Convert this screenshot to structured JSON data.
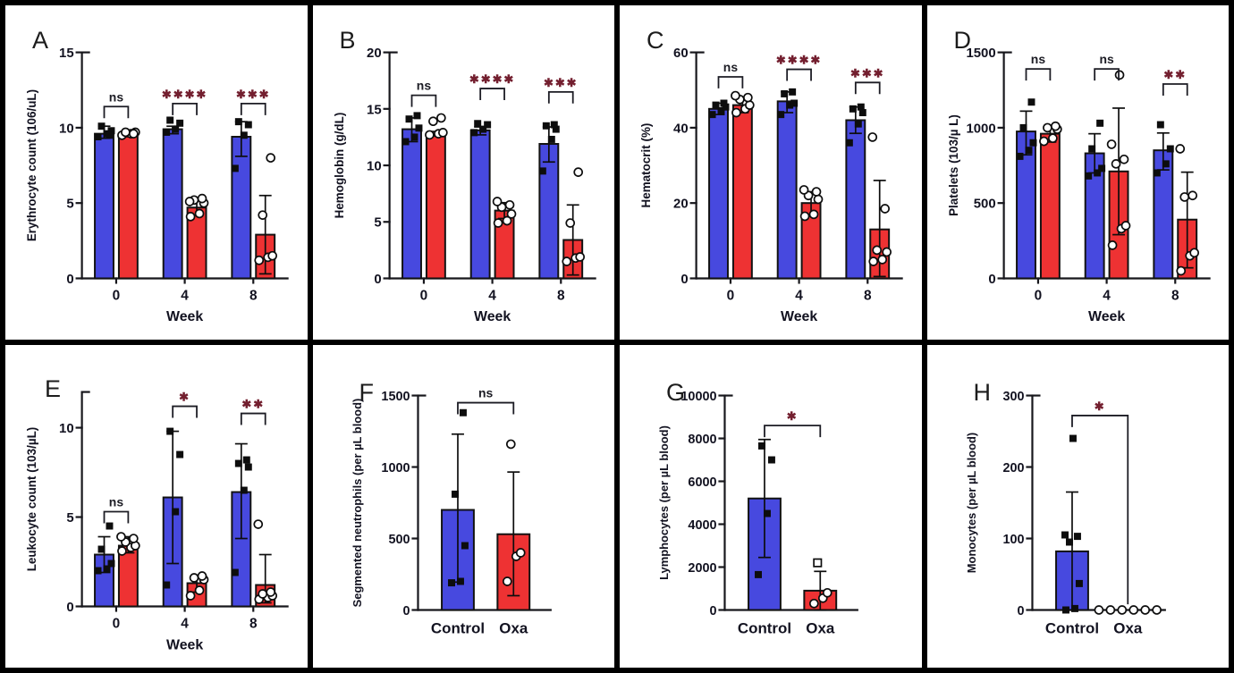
{
  "groups": [
    {
      "name": "Control",
      "color": "#4749df",
      "marker": "square-filled"
    },
    {
      "name": "Oxa",
      "color": "#ee3233",
      "marker": "circle-open"
    }
  ],
  "colors": {
    "axis": "#17171c",
    "tick_label": "#121220",
    "bar_outline": "#121212",
    "point": "#0d0d0d",
    "sig_star": "#731f2f",
    "sig_ns": "#1c1c24"
  },
  "chart_data": [
    {
      "id": "A",
      "type": "bar",
      "layout": "grouped",
      "title": "",
      "xlabel": "Week",
      "ylabel": "Erythrocyte count (106/uL)",
      "ylim": [
        0,
        15
      ],
      "yticks": [
        0,
        5,
        10,
        15
      ],
      "categories": [
        "0",
        "4",
        "8"
      ],
      "series": [
        {
          "name": "Control",
          "group": 0,
          "values": [
            9.6,
            9.9,
            9.4
          ],
          "err_lo": [
            9.3,
            9.6,
            8.1
          ],
          "err_hi": [
            10.1,
            10.1,
            10.4
          ],
          "points": [
            [
              9.4,
              9.6,
              9.8,
              10.1,
              9.5
            ],
            [
              9.7,
              9.9,
              10.3,
              10.5
            ],
            [
              7.3,
              9.5,
              10.2,
              10.4
            ]
          ]
        },
        {
          "name": "Oxa",
          "group": 1,
          "values": [
            9.6,
            4.7,
            2.9
          ],
          "err_lo": [
            9.4,
            4.2,
            0.3
          ],
          "err_hi": [
            9.8,
            5.2,
            5.5
          ],
          "points": [
            [
              9.5,
              9.6,
              9.7,
              9.7,
              9.6
            ],
            [
              4.1,
              4.3,
              5.0,
              5.2,
              5.3,
              5.1
            ],
            [
              1.2,
              1.4,
              1.5,
              4.2,
              8.0
            ]
          ]
        }
      ],
      "significance": [
        {
          "category": 0,
          "label": "ns",
          "y": 11.4
        },
        {
          "category": 1,
          "label": "****",
          "y": 11.6
        },
        {
          "category": 2,
          "label": "***",
          "y": 11.6
        }
      ]
    },
    {
      "id": "B",
      "type": "bar",
      "layout": "grouped",
      "title": "",
      "xlabel": "Week",
      "ylabel": "Hemoglobin (g/dL)",
      "ylim": [
        0,
        20
      ],
      "yticks": [
        0,
        5,
        10,
        15,
        20
      ],
      "categories": [
        "0",
        "4",
        "8"
      ],
      "series": [
        {
          "name": "Control",
          "group": 0,
          "values": [
            13.2,
            13.1,
            11.9
          ],
          "err_lo": [
            12.1,
            12.7,
            10.3
          ],
          "err_hi": [
            14.2,
            13.4,
            13.4
          ],
          "points": [
            [
              12.1,
              12.5,
              13.3,
              14.1,
              14.4
            ],
            [
              12.9,
              13.2,
              13.6,
              13.7
            ],
            [
              9.5,
              12.3,
              13.2,
              13.5,
              13.6
            ]
          ]
        },
        {
          "name": "Oxa",
          "group": 1,
          "values": [
            12.8,
            6.0,
            3.4
          ],
          "err_lo": [
            12.6,
            5.3,
            0.3
          ],
          "err_hi": [
            13.0,
            6.7,
            6.5
          ],
          "points": [
            [
              12.7,
              12.8,
              12.9,
              13.9,
              14.2
            ],
            [
              4.9,
              5.1,
              5.7,
              6.3,
              6.5,
              6.8
            ],
            [
              1.5,
              1.8,
              1.9,
              4.9,
              9.4
            ]
          ]
        }
      ],
      "significance": [
        {
          "category": 0,
          "label": "ns",
          "y": 16.2
        },
        {
          "category": 1,
          "label": "****",
          "y": 16.8
        },
        {
          "category": 2,
          "label": "***",
          "y": 16.5
        }
      ]
    },
    {
      "id": "C",
      "type": "bar",
      "layout": "grouped",
      "title": "",
      "xlabel": "Week",
      "ylabel": "Hematocrit (%)",
      "ylim": [
        0,
        60
      ],
      "yticks": [
        0,
        20,
        40,
        60
      ],
      "categories": [
        "0",
        "4",
        "8"
      ],
      "series": [
        {
          "name": "Control",
          "group": 0,
          "values": [
            45,
            47,
            42
          ],
          "err_lo": [
            43.5,
            44,
            38.5
          ],
          "err_hi": [
            46.5,
            49.5,
            45.5
          ],
          "points": [
            [
              43.5,
              44.5,
              45.5,
              46,
              46.5
            ],
            [
              43.5,
              46,
              46.5,
              49,
              49.5
            ],
            [
              36,
              41,
              44,
              45,
              45.5
            ]
          ]
        },
        {
          "name": "Oxa",
          "group": 1,
          "values": [
            46,
            20,
            13
          ],
          "err_lo": [
            44,
            16.5,
            0.5
          ],
          "err_hi": [
            48,
            23,
            26
          ],
          "points": [
            [
              44,
              45,
              46,
              47.5,
              48,
              48.5
            ],
            [
              16.5,
              17,
              21,
              22,
              23,
              23.5
            ],
            [
              4.5,
              5,
              7,
              7.5,
              18.5,
              37.5
            ]
          ]
        }
      ],
      "significance": [
        {
          "category": 0,
          "label": "ns",
          "y": 53.5
        },
        {
          "category": 1,
          "label": "****",
          "y": 55.5
        },
        {
          "category": 2,
          "label": "***",
          "y": 52
        }
      ]
    },
    {
      "id": "D",
      "type": "bar",
      "layout": "grouped",
      "title": "",
      "xlabel": "Week",
      "ylabel": "Platelets (103/µ L)",
      "ylim": [
        0,
        1500
      ],
      "yticks": [
        0,
        500,
        1000,
        1500
      ],
      "categories": [
        "0",
        "4",
        "8"
      ],
      "series": [
        {
          "name": "Control",
          "group": 0,
          "values": [
            975,
            830,
            850
          ],
          "err_lo": [
            820,
            700,
            720
          ],
          "err_hi": [
            1110,
            960,
            965
          ],
          "points": [
            [
              810,
              850,
              900,
              1000,
              1170
            ],
            [
              680,
              700,
              730,
              860,
              1030
            ],
            [
              700,
              760,
              860,
              1020
            ]
          ]
        },
        {
          "name": "Oxa",
          "group": 1,
          "values": [
            960,
            710,
            390
          ],
          "err_lo": [
            905,
            290,
            70
          ],
          "err_hi": [
            1015,
            1130,
            705
          ],
          "points": [
            [
              910,
              930,
              990,
              1000,
              1010
            ],
            [
              220,
              330,
              350,
              760,
              790,
              890,
              1350
            ],
            [
              50,
              150,
              170,
              540,
              550,
              860
            ]
          ]
        }
      ],
      "significance": [
        {
          "category": 0,
          "label": "ns",
          "y": 1390
        },
        {
          "category": 1,
          "label": "ns",
          "y": 1390
        },
        {
          "category": 2,
          "label": "**",
          "y": 1290
        }
      ]
    },
    {
      "id": "E",
      "type": "bar",
      "layout": "grouped",
      "title": "",
      "xlabel": "Week",
      "ylabel": "Leukocyte count (103/µL)",
      "ylim": [
        0,
        12
      ],
      "yticks": [
        0,
        5,
        10
      ],
      "categories": [
        "0",
        "4",
        "8"
      ],
      "series": [
        {
          "name": "Control",
          "group": 0,
          "values": [
            2.9,
            6.1,
            6.4
          ],
          "err_lo": [
            1.9,
            2.4,
            3.8
          ],
          "err_hi": [
            3.9,
            9.8,
            9.1
          ],
          "points": [
            [
              2.0,
              2.1,
              2.4,
              3.2,
              4.5
            ],
            [
              1.2,
              5.3,
              8.5,
              9.8
            ],
            [
              1.9,
              6.5,
              7.8,
              8.0,
              8.2
            ]
          ]
        },
        {
          "name": "Oxa",
          "group": 1,
          "values": [
            3.4,
            1.3,
            1.2
          ],
          "err_lo": [
            3.0,
            0.8,
            0.2
          ],
          "err_hi": [
            3.9,
            1.7,
            2.9
          ],
          "points": [
            [
              3.1,
              3.3,
              3.4,
              3.6,
              3.8,
              3.9
            ],
            [
              0.6,
              0.9,
              1.5,
              1.6,
              1.7
            ],
            [
              0.4,
              0.5,
              0.6,
              0.7,
              0.8,
              4.6
            ]
          ]
        }
      ],
      "significance": [
        {
          "category": 0,
          "label": "ns",
          "y": 5.3
        },
        {
          "category": 1,
          "label": "*",
          "y": 11.2
        },
        {
          "category": 2,
          "label": "**",
          "y": 10.8
        }
      ]
    },
    {
      "id": "F",
      "type": "bar",
      "layout": "single",
      "title": "",
      "xlabel": "",
      "ylabel": "Segmented neutrophils (per µL blood)",
      "ylim": [
        0,
        1500
      ],
      "yticks": [
        0,
        500,
        1000,
        1500
      ],
      "categories": [
        "Control",
        "Oxa"
      ],
      "series": [
        {
          "name": "Control",
          "group": 0,
          "values": [
            700
          ],
          "err_lo": [
            195
          ],
          "err_hi": [
            1230
          ],
          "points": [
            [
              190,
              200,
              450,
              810,
              1380
            ]
          ]
        },
        {
          "name": "Oxa",
          "group": 1,
          "values": [
            530
          ],
          "err_lo": [
            100
          ],
          "err_hi": [
            965
          ],
          "points": [
            [
              200,
              375,
              400,
              1160
            ]
          ]
        }
      ],
      "significance": [
        {
          "category": 0,
          "label": "ns",
          "y": 1450
        }
      ]
    },
    {
      "id": "G",
      "type": "bar",
      "layout": "single",
      "title": "",
      "xlabel": "",
      "ylabel": "Lymphocytes (per µL blood)",
      "ylim": [
        0,
        10000
      ],
      "yticks": [
        0,
        2000,
        4000,
        6000,
        8000,
        10000
      ],
      "categories": [
        "Control",
        "Oxa"
      ],
      "series": [
        {
          "name": "Control",
          "group": 0,
          "values": [
            5200
          ],
          "err_lo": [
            2450
          ],
          "err_hi": [
            7950
          ],
          "points": [
            [
              1650,
              4500,
              7000,
              7650
            ]
          ]
        },
        {
          "name": "Oxa",
          "group": 1,
          "values": [
            900
          ],
          "err_lo": [
            0
          ],
          "err_hi": [
            1800
          ],
          "points": [
            [
              300,
              550,
              800,
              {
                "v": 2200,
                "m": "square-open"
              }
            ]
          ]
        }
      ],
      "significance": [
        {
          "category": 0,
          "label": "*",
          "y": 8600
        }
      ]
    },
    {
      "id": "H",
      "type": "bar",
      "layout": "single",
      "title": "",
      "xlabel": "",
      "ylabel": "Monocytes (per µL blood)",
      "ylim": [
        0,
        300
      ],
      "yticks": [
        0,
        100,
        200,
        300
      ],
      "categories": [
        "Control",
        "Oxa"
      ],
      "series": [
        {
          "name": "Control",
          "group": 0,
          "values": [
            82
          ],
          "err_lo": [
            0
          ],
          "err_hi": [
            165
          ],
          "points": [
            [
              0,
              2,
              37,
              95,
              103,
              105,
              240
            ]
          ]
        },
        {
          "name": "Oxa",
          "group": 1,
          "values": [
            0
          ],
          "err_lo": [
            0
          ],
          "err_hi": [
            0
          ],
          "points": [
            [
              0,
              0,
              0,
              0,
              0,
              0
            ]
          ]
        }
      ],
      "significance": [
        {
          "category": 0,
          "label": "*",
          "y": 272,
          "right_to": 8
        }
      ]
    }
  ]
}
